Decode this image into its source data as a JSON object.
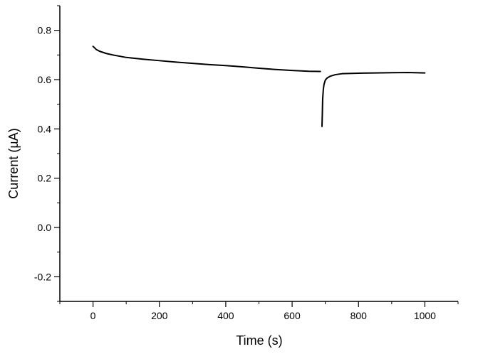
{
  "chart_data": {
    "type": "line",
    "title": "",
    "xlabel": "Time (s)",
    "ylabel": "Current (µA)",
    "xlim": [
      -100,
      1100
    ],
    "ylim": [
      -0.3,
      0.9
    ],
    "x_ticks": [
      0,
      200,
      400,
      600,
      800,
      1000
    ],
    "x_tick_labels": [
      "0",
      "200",
      "400",
      "600",
      "800",
      "1000"
    ],
    "y_ticks": [
      -0.2,
      0.0,
      0.2,
      0.4,
      0.6,
      0.8
    ],
    "y_tick_labels": [
      "-0.2",
      "0.0",
      "0.2",
      "0.4",
      "0.6",
      "0.8"
    ],
    "grid": false,
    "legend": "none",
    "line_color": "#000000",
    "series": [
      {
        "segments": [
          {
            "x": [
              0,
              10,
              20,
              40,
              60,
              80,
              100,
              150,
              200,
              250,
              300,
              350,
              400,
              450,
              500,
              550,
              600,
              650,
              685
            ],
            "y": [
              0.735,
              0.722,
              0.715,
              0.706,
              0.7,
              0.695,
              0.69,
              0.683,
              0.677,
              0.671,
              0.666,
              0.661,
              0.657,
              0.652,
              0.646,
              0.641,
              0.637,
              0.634,
              0.633
            ]
          },
          {
            "x": [
              690,
              691,
              692,
              694,
              696,
              700,
              705,
              715,
              730,
              750,
              800,
              850,
              900,
              950,
              1000
            ],
            "y": [
              0.41,
              0.46,
              0.52,
              0.56,
              0.58,
              0.598,
              0.606,
              0.614,
              0.62,
              0.624,
              0.626,
              0.627,
              0.628,
              0.629,
              0.627
            ]
          }
        ]
      }
    ]
  }
}
